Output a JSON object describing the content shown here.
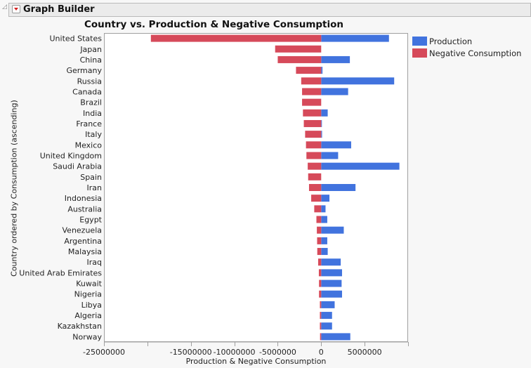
{
  "window": {
    "header_title": "Graph Builder",
    "menu_icon": "red-triangle-menu-icon",
    "outline_icon": "disclosure-triangle-icon"
  },
  "colors": {
    "production": "#4173de",
    "negative_consumption": "#d64a5a"
  },
  "chart_data": {
    "type": "bar",
    "orientation": "horizontal",
    "title": "Country vs. Production & Negative Consumption",
    "xlabel": "Production & Negative Consumption",
    "ylabel": "Country ordered by Consumption (ascending)",
    "xlim": [
      -25000000,
      10000000
    ],
    "x_ticks": [
      -25000000,
      -20000000,
      -15000000,
      -10000000,
      -5000000,
      0,
      5000000
    ],
    "x_tick_labels": [
      "-25000000",
      "",
      "-15000000",
      "-10000000",
      "-5000000",
      "0",
      "5000000"
    ],
    "grid": false,
    "legend_position": "right",
    "categories": [
      "United States",
      "Japan",
      "China",
      "Germany",
      "Russia",
      "Canada",
      "Brazil",
      "India",
      "France",
      "Italy",
      "Mexico",
      "United Kingdom",
      "Saudi Arabia",
      "Spain",
      "Iran",
      "Indonesia",
      "Australia",
      "Egypt",
      "Venezuela",
      "Argentina",
      "Malaysia",
      "Iraq",
      "United Arab Emirates",
      "Kuwait",
      "Nigeria",
      "Libya",
      "Algeria",
      "Kazakhstan",
      "Norway"
    ],
    "series": [
      {
        "name": "Production",
        "values": [
          7800000,
          0,
          3300000,
          150000,
          8400000,
          3100000,
          0,
          750000,
          50000,
          100000,
          3450000,
          1950000,
          9000000,
          0,
          3950000,
          950000,
          500000,
          700000,
          2600000,
          700000,
          750000,
          2250000,
          2400000,
          2350000,
          2400000,
          1550000,
          1250000,
          1250000,
          3350000
        ]
      },
      {
        "name": "Negative Consumption",
        "values": [
          -19600000,
          -5300000,
          -5000000,
          -2900000,
          -2300000,
          -2200000,
          -2200000,
          -2100000,
          -2000000,
          -1850000,
          -1750000,
          -1700000,
          -1550000,
          -1500000,
          -1400000,
          -1150000,
          -800000,
          -550000,
          -500000,
          -470000,
          -450000,
          -350000,
          -270000,
          -250000,
          -250000,
          -150000,
          -150000,
          -150000,
          -130000
        ]
      }
    ]
  }
}
